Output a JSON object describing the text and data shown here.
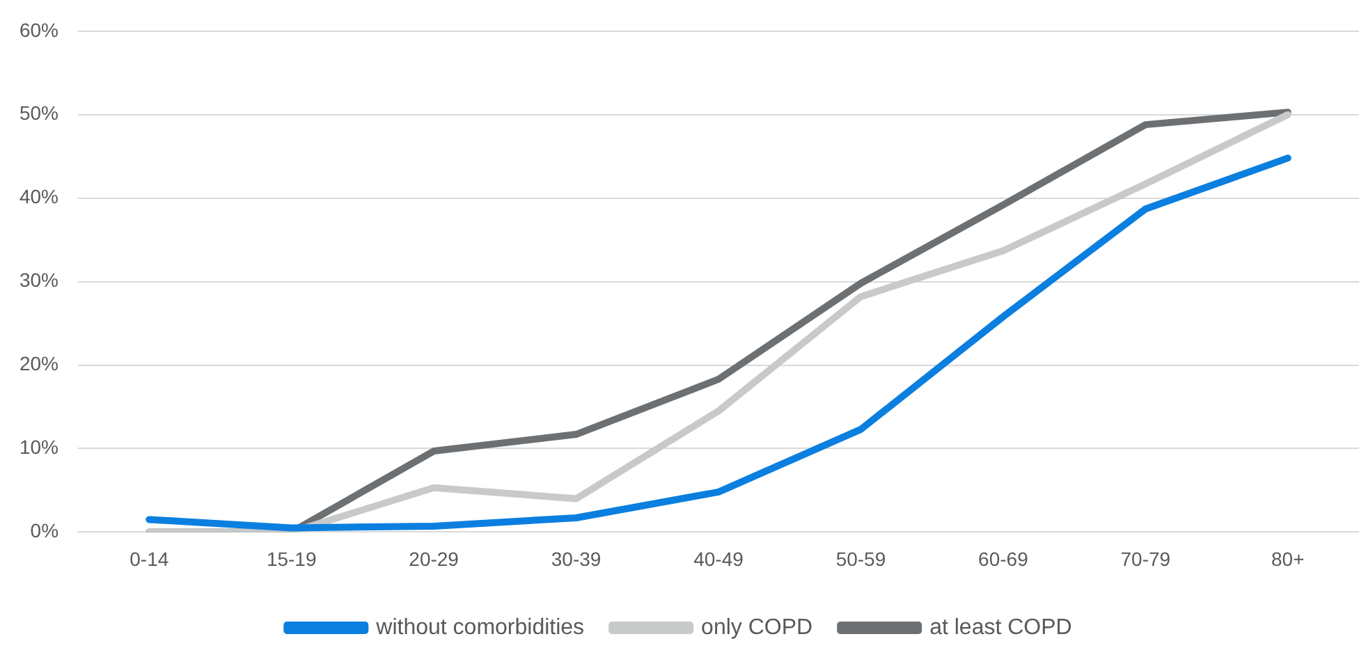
{
  "chart_data": {
    "type": "line",
    "categories": [
      "0-14",
      "15-19",
      "20-29",
      "30-39",
      "40-49",
      "50-59",
      "60-69",
      "70-79",
      "80+"
    ],
    "series": [
      {
        "name": "without comorbidities",
        "color": "#0a7fe0",
        "values": [
          1.5,
          0.5,
          0.7,
          1.7,
          4.8,
          12.3,
          25.8,
          38.7,
          44.8
        ]
      },
      {
        "name": "only COPD",
        "color": "#c8c9c9",
        "values": [
          0,
          0,
          5.3,
          4.0,
          14.5,
          28.2,
          33.7,
          41.7,
          50.0
        ]
      },
      {
        "name": "at least COPD",
        "color": "#6d7073",
        "values": [
          0,
          0,
          9.7,
          11.7,
          18.3,
          29.8,
          39.2,
          48.8,
          50.3
        ]
      }
    ],
    "ylim": [
      0,
      60
    ],
    "yticks": [
      {
        "value": 0,
        "label": "0%"
      },
      {
        "value": 10,
        "label": "10%"
      },
      {
        "value": 20,
        "label": "20%"
      },
      {
        "value": 30,
        "label": "30%"
      },
      {
        "value": 40,
        "label": "40%"
      },
      {
        "value": 50,
        "label": "50%"
      },
      {
        "value": 60,
        "label": "60%"
      }
    ],
    "grid": "y",
    "legend": "bottom",
    "marker": "none",
    "line_style": "solid"
  }
}
